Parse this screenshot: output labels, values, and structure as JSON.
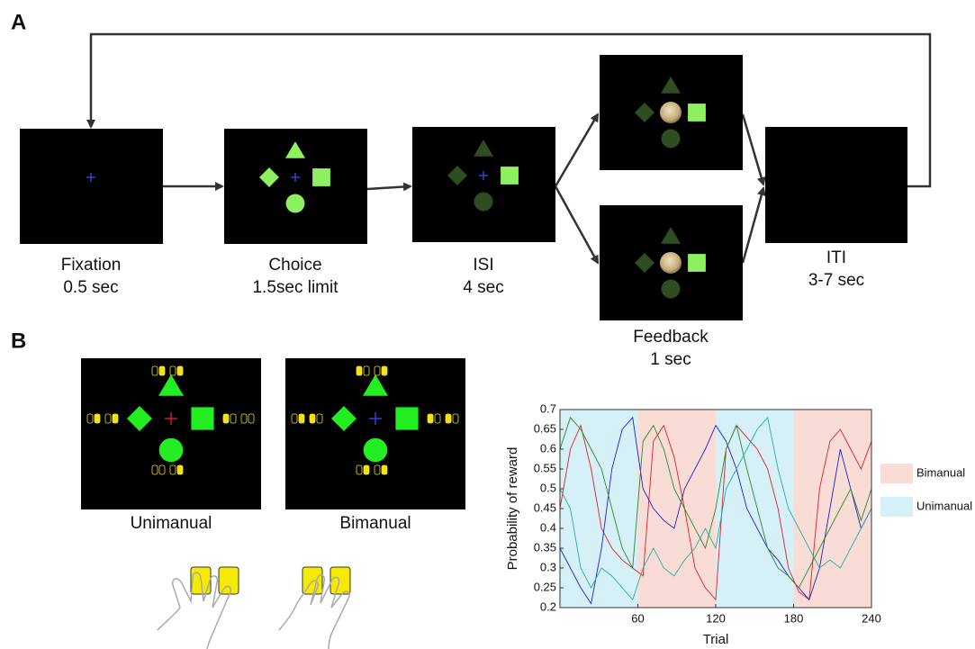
{
  "panel_a": {
    "label": "A",
    "stages": [
      {
        "name": "Fixation",
        "duration": "0.5 sec"
      },
      {
        "name": "Choice",
        "duration": "1.5sec limit"
      },
      {
        "name": "ISI",
        "duration": "4 sec"
      },
      {
        "name": "Feedback",
        "duration": "1 sec"
      },
      {
        "name": "ITI",
        "duration": "3-7 sec"
      }
    ]
  },
  "panel_b": {
    "label": "B",
    "screens": [
      "Unimanual",
      "Bimanual"
    ]
  },
  "chart_data": {
    "type": "line",
    "x_label": "Trial",
    "y_label": "Probability of reward",
    "xlim": [
      0,
      240
    ],
    "xticks": [
      60,
      120,
      180,
      240
    ],
    "ylim": [
      0.2,
      0.7
    ],
    "yticks": [
      0.2,
      0.25,
      0.3,
      0.35,
      0.4,
      0.45,
      0.5,
      0.55,
      0.6,
      0.65,
      0.7
    ],
    "conditions": [
      {
        "name": "Bimanual",
        "color": "#fadcd6",
        "blocks": [
          [
            60,
            120
          ],
          [
            180,
            240
          ]
        ]
      },
      {
        "name": "Unimanual",
        "color": "#d6f0f8",
        "blocks": [
          [
            0,
            60
          ],
          [
            120,
            180
          ]
        ]
      }
    ],
    "x": [
      0,
      8,
      16,
      24,
      32,
      40,
      48,
      56,
      64,
      72,
      80,
      88,
      96,
      104,
      112,
      120,
      128,
      136,
      144,
      152,
      160,
      168,
      176,
      184,
      192,
      200,
      208,
      216,
      224,
      232,
      240
    ],
    "series": [
      {
        "color": "#e02020",
        "values": [
          0.45,
          0.6,
          0.66,
          0.55,
          0.4,
          0.35,
          0.32,
          0.3,
          0.28,
          0.62,
          0.66,
          0.58,
          0.45,
          0.3,
          0.25,
          0.22,
          0.6,
          0.66,
          0.63,
          0.6,
          0.55,
          0.45,
          0.3,
          0.24,
          0.22,
          0.5,
          0.62,
          0.65,
          0.6,
          0.55,
          0.62
        ]
      },
      {
        "color": "#2020d0",
        "values": [
          0.35,
          0.3,
          0.25,
          0.21,
          0.35,
          0.55,
          0.65,
          0.68,
          0.5,
          0.45,
          0.42,
          0.4,
          0.5,
          0.55,
          0.6,
          0.66,
          0.62,
          0.55,
          0.45,
          0.4,
          0.35,
          0.32,
          0.28,
          0.25,
          0.22,
          0.3,
          0.45,
          0.6,
          0.5,
          0.4,
          0.45
        ]
      },
      {
        "color": "#2a8a2a",
        "values": [
          0.6,
          0.68,
          0.65,
          0.6,
          0.55,
          0.45,
          0.35,
          0.3,
          0.62,
          0.66,
          0.6,
          0.5,
          0.45,
          0.4,
          0.35,
          0.45,
          0.6,
          0.66,
          0.55,
          0.45,
          0.35,
          0.3,
          0.28,
          0.25,
          0.3,
          0.35,
          0.4,
          0.45,
          0.5,
          0.42,
          0.5
        ]
      },
      {
        "color": "#20b0a8",
        "values": [
          0.5,
          0.45,
          0.3,
          0.25,
          0.3,
          0.28,
          0.25,
          0.22,
          0.3,
          0.35,
          0.3,
          0.28,
          0.32,
          0.35,
          0.4,
          0.35,
          0.5,
          0.55,
          0.6,
          0.65,
          0.68,
          0.55,
          0.45,
          0.4,
          0.35,
          0.3,
          0.32,
          0.3,
          0.35,
          0.4,
          0.45
        ]
      }
    ]
  }
}
